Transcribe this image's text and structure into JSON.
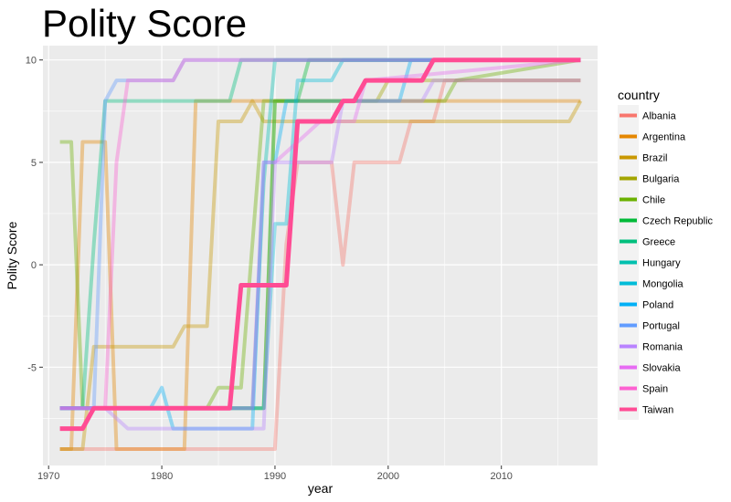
{
  "chart_data": {
    "type": "line",
    "title": "Polity Score",
    "xlabel": "year",
    "ylabel": "Polity Score",
    "xlim": [
      1969.5,
      2018.5
    ],
    "ylim": [
      -9.8,
      10.7
    ],
    "x_ticks": [
      1970,
      1980,
      1990,
      2000,
      2010
    ],
    "x_tick_labels": [
      "1970",
      "1980",
      "1990",
      "2000",
      "2010"
    ],
    "y_ticks": [
      -5,
      0,
      5,
      10
    ],
    "y_tick_labels": [
      "-5",
      "0",
      "5",
      "10"
    ],
    "grid": true,
    "legend": {
      "title": "country",
      "position": "right"
    },
    "highlight_series": "Taiwan",
    "series": [
      {
        "name": "Albania",
        "color": "#F8766D",
        "points": [
          [
            1971,
            -9
          ],
          [
            1989,
            -9
          ],
          [
            1990,
            -9
          ],
          [
            1991,
            1
          ],
          [
            1992,
            5
          ],
          [
            1995,
            5
          ],
          [
            1996,
            0
          ],
          [
            1997,
            5
          ],
          [
            2001,
            5
          ],
          [
            2002,
            7
          ],
          [
            2004,
            7
          ],
          [
            2005,
            9
          ],
          [
            2017,
            9
          ]
        ]
      },
      {
        "name": "Argentina",
        "color": "#E58700",
        "points": [
          [
            1971,
            -9
          ],
          [
            1972,
            -9
          ],
          [
            1973,
            6
          ],
          [
            1975,
            6
          ],
          [
            1976,
            -9
          ],
          [
            1982,
            -9
          ],
          [
            1983,
            8
          ],
          [
            2017,
            8
          ]
        ]
      },
      {
        "name": "Brazil",
        "color": "#C99800",
        "points": [
          [
            1971,
            -9
          ],
          [
            1973,
            -9
          ],
          [
            1974,
            -4
          ],
          [
            1981,
            -4
          ],
          [
            1982,
            -3
          ],
          [
            1984,
            -3
          ],
          [
            1985,
            7
          ],
          [
            1987,
            7
          ],
          [
            1988,
            8
          ],
          [
            1989,
            7
          ],
          [
            2016,
            7
          ],
          [
            2017,
            8
          ]
        ]
      },
      {
        "name": "Bulgaria",
        "color": "#A3A500",
        "points": [
          [
            1971,
            -7
          ],
          [
            1988,
            -7
          ],
          [
            1989,
            -7
          ],
          [
            1990,
            8
          ],
          [
            1991,
            8
          ],
          [
            1999,
            8
          ],
          [
            2000,
            9
          ],
          [
            2017,
            9
          ]
        ]
      },
      {
        "name": "Chile",
        "color": "#6BB100",
        "points": [
          [
            1971,
            6
          ],
          [
            1972,
            6
          ],
          [
            1973,
            -7
          ],
          [
            1984,
            -7
          ],
          [
            1985,
            -6
          ],
          [
            1987,
            -6
          ],
          [
            1988,
            1
          ],
          [
            1989,
            8
          ],
          [
            2005,
            8
          ],
          [
            2006,
            9
          ],
          [
            2017,
            10
          ]
        ]
      },
      {
        "name": "Czech Republic",
        "color": "#00BA38",
        "points": [
          [
            1971,
            -7
          ],
          [
            1988,
            -7
          ],
          [
            1989,
            -7
          ],
          [
            1990,
            8
          ],
          [
            1992,
            8
          ],
          [
            1993,
            10
          ],
          [
            2017,
            10
          ]
        ]
      },
      {
        "name": "Greece",
        "color": "#00BF7D",
        "points": [
          [
            1971,
            -7
          ],
          [
            1973,
            -7
          ],
          [
            1974,
            1
          ],
          [
            1975,
            8
          ],
          [
            1986,
            8
          ],
          [
            1987,
            10
          ],
          [
            2017,
            10
          ]
        ]
      },
      {
        "name": "Hungary",
        "color": "#00C0AF",
        "points": [
          [
            1971,
            -7
          ],
          [
            1988,
            -7
          ],
          [
            1989,
            4
          ],
          [
            1990,
            10
          ],
          [
            2005,
            10
          ],
          [
            2006,
            10
          ],
          [
            2017,
            10
          ]
        ]
      },
      {
        "name": "Mongolia",
        "color": "#00BCD8",
        "points": [
          [
            1971,
            -7
          ],
          [
            1988,
            -7
          ],
          [
            1989,
            -7
          ],
          [
            1990,
            2
          ],
          [
            1991,
            2
          ],
          [
            1992,
            9
          ],
          [
            1995,
            9
          ],
          [
            1996,
            10
          ],
          [
            2017,
            10
          ]
        ]
      },
      {
        "name": "Poland",
        "color": "#00B0F6",
        "points": [
          [
            1971,
            -7
          ],
          [
            1979,
            -7
          ],
          [
            1980,
            -6
          ],
          [
            1981,
            -8
          ],
          [
            1988,
            -8
          ],
          [
            1989,
            5
          ],
          [
            1990,
            5
          ],
          [
            1991,
            8
          ],
          [
            2001,
            8
          ],
          [
            2002,
            10
          ],
          [
            2017,
            10
          ]
        ]
      },
      {
        "name": "Portugal",
        "color": "#619CFF",
        "points": [
          [
            1971,
            -7
          ],
          [
            1973,
            -7
          ],
          [
            1974,
            -7
          ],
          [
            1975,
            8
          ],
          [
            1976,
            9
          ],
          [
            1981,
            9
          ],
          [
            1982,
            10
          ],
          [
            2017,
            10
          ]
        ]
      },
      {
        "name": "Romania",
        "color": "#B983FF",
        "points": [
          [
            1971,
            -7
          ],
          [
            1974,
            -7
          ],
          [
            1975,
            -7
          ],
          [
            1977,
            -8
          ],
          [
            1988,
            -8
          ],
          [
            1989,
            -8
          ],
          [
            1990,
            5
          ],
          [
            1995,
            5
          ],
          [
            1996,
            8
          ],
          [
            2003,
            8
          ],
          [
            2004,
            9
          ],
          [
            2017,
            9
          ]
        ]
      },
      {
        "name": "Slovakia",
        "color": "#E76BF3",
        "points": [
          [
            1971,
            -7
          ],
          [
            1974,
            -7
          ],
          [
            1975,
            -7
          ],
          [
            1976,
            -7
          ],
          [
            1977,
            -7
          ],
          [
            1988,
            -7
          ],
          [
            1989,
            5
          ],
          [
            1990,
            5
          ],
          [
            1992,
            6
          ],
          [
            1994,
            7
          ],
          [
            1997,
            7
          ],
          [
            1998,
            9
          ],
          [
            2017,
            10
          ]
        ]
      },
      {
        "name": "Spain",
        "color": "#FD61D1",
        "points": [
          [
            1971,
            -7
          ],
          [
            1973,
            -7
          ],
          [
            1974,
            -7
          ],
          [
            1975,
            -7
          ],
          [
            1976,
            5
          ],
          [
            1977,
            9
          ],
          [
            1981,
            9
          ],
          [
            1982,
            10
          ],
          [
            2017,
            10
          ]
        ]
      },
      {
        "name": "Taiwan",
        "color": "#FF4C94",
        "points": [
          [
            1971,
            -8
          ],
          [
            1973,
            -8
          ],
          [
            1974,
            -7
          ],
          [
            1986,
            -7
          ],
          [
            1987,
            -1
          ],
          [
            1990,
            -1
          ],
          [
            1991,
            -1
          ],
          [
            1992,
            7
          ],
          [
            1995,
            7
          ],
          [
            1996,
            8
          ],
          [
            1997,
            8
          ],
          [
            1998,
            9
          ],
          [
            2002,
            9
          ],
          [
            2003,
            9
          ],
          [
            2004,
            10
          ],
          [
            2017,
            10
          ]
        ]
      }
    ]
  }
}
